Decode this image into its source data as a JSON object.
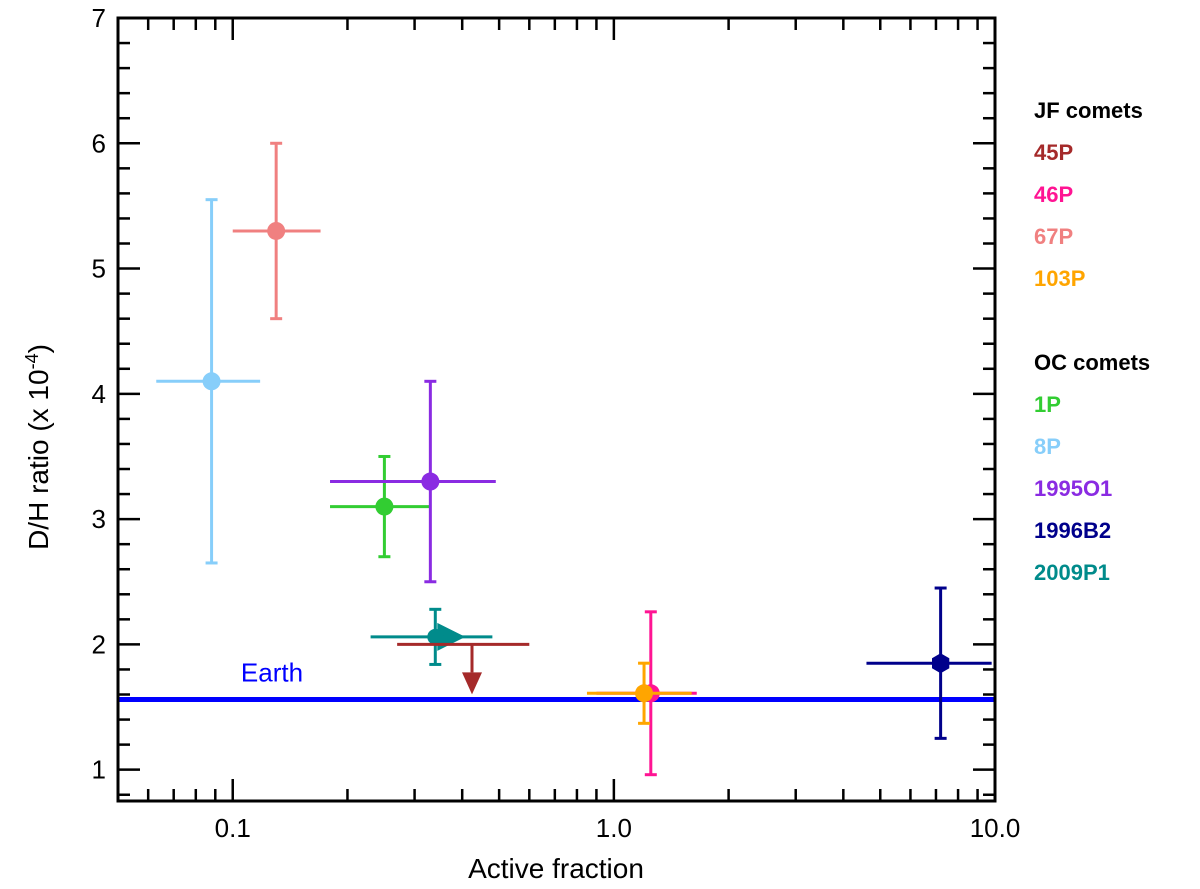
{
  "chart_data": {
    "type": "scatter",
    "title": "",
    "xlabel": "Active fraction",
    "ylabel_main": "D/H ratio (x 10",
    "ylabel_exp": "-4",
    "ylabel_close": ")",
    "xscale": "log",
    "xlim": [
      0.05,
      10.0
    ],
    "ylim": [
      0.75,
      7.0
    ],
    "x_ticks": [
      0.1,
      1.0,
      10.0
    ],
    "x_tick_labels": [
      "0.1",
      "1.0",
      "10.0"
    ],
    "y_ticks": [
      1,
      2,
      3,
      4,
      5,
      6,
      7
    ],
    "y_tick_labels": [
      "1",
      "2",
      "3",
      "4",
      "5",
      "6",
      "7"
    ],
    "grid": false,
    "legend_position": "right-outside",
    "legend_groups": [
      {
        "title": "JF comets",
        "entries": [
          {
            "name": "45P",
            "color": "#a52a2a"
          },
          {
            "name": "46P",
            "color": "#ff1493"
          },
          {
            "name": "67P",
            "color": "#f08080"
          },
          {
            "name": "103P",
            "color": "#ffa500"
          }
        ]
      },
      {
        "title": "OC comets",
        "entries": [
          {
            "name": "1P",
            "color": "#32cd32"
          },
          {
            "name": "8P",
            "color": "#87cefa"
          },
          {
            "name": "1995O1",
            "color": "#8a2be2"
          },
          {
            "name": "1996B2",
            "color": "#00008b"
          },
          {
            "name": "2009P1",
            "color": "#008b8b"
          }
        ]
      }
    ],
    "reference_line": {
      "label": "Earth",
      "y": 1.56,
      "color": "#0000ff"
    },
    "points": [
      {
        "name": "8P",
        "color": "#87cefa",
        "x": 0.088,
        "x_err": [
          0.063,
          0.118
        ],
        "y": 4.1,
        "y_err": [
          2.65,
          5.55
        ],
        "marker": "circle"
      },
      {
        "name": "67P",
        "color": "#f08080",
        "x": 0.13,
        "x_err": [
          0.1,
          0.17
        ],
        "y": 5.3,
        "y_err": [
          4.6,
          6.0
        ],
        "marker": "circle"
      },
      {
        "name": "1P",
        "color": "#32cd32",
        "x": 0.25,
        "x_err": [
          0.18,
          0.33
        ],
        "y": 3.1,
        "y_err": [
          2.7,
          3.5
        ],
        "marker": "circle"
      },
      {
        "name": "1995O1",
        "color": "#8a2be2",
        "x": 0.33,
        "x_err": [
          0.18,
          0.49
        ],
        "y": 3.3,
        "y_err": [
          2.5,
          4.1
        ],
        "marker": "circle"
      },
      {
        "name": "2009P1",
        "color": "#008b8b",
        "x": 0.34,
        "x_err": [
          0.23,
          0.48
        ],
        "y": 2.06,
        "y_err": [
          1.84,
          2.28
        ],
        "marker": "arrow-right"
      },
      {
        "name": "45P",
        "color": "#a52a2a",
        "x": 0.42,
        "x_err": [
          0.27,
          0.6
        ],
        "y": 2.0,
        "y_err": null,
        "marker": "upper-limit"
      },
      {
        "name": "46P",
        "color": "#ff1493",
        "x": 1.25,
        "x_err": [
          0.9,
          1.65
        ],
        "y": 1.61,
        "y_err": [
          0.96,
          2.26
        ],
        "marker": "circle"
      },
      {
        "name": "103P",
        "color": "#ffa500",
        "x": 1.2,
        "x_err": [
          0.85,
          1.6
        ],
        "y": 1.61,
        "y_err": [
          1.37,
          1.85
        ],
        "marker": "circle"
      },
      {
        "name": "1996B2",
        "color": "#00008b",
        "x": 7.2,
        "x_err": [
          4.6,
          9.8
        ],
        "y": 1.85,
        "y_err": [
          1.25,
          2.45
        ],
        "marker": "hexagon"
      }
    ]
  }
}
